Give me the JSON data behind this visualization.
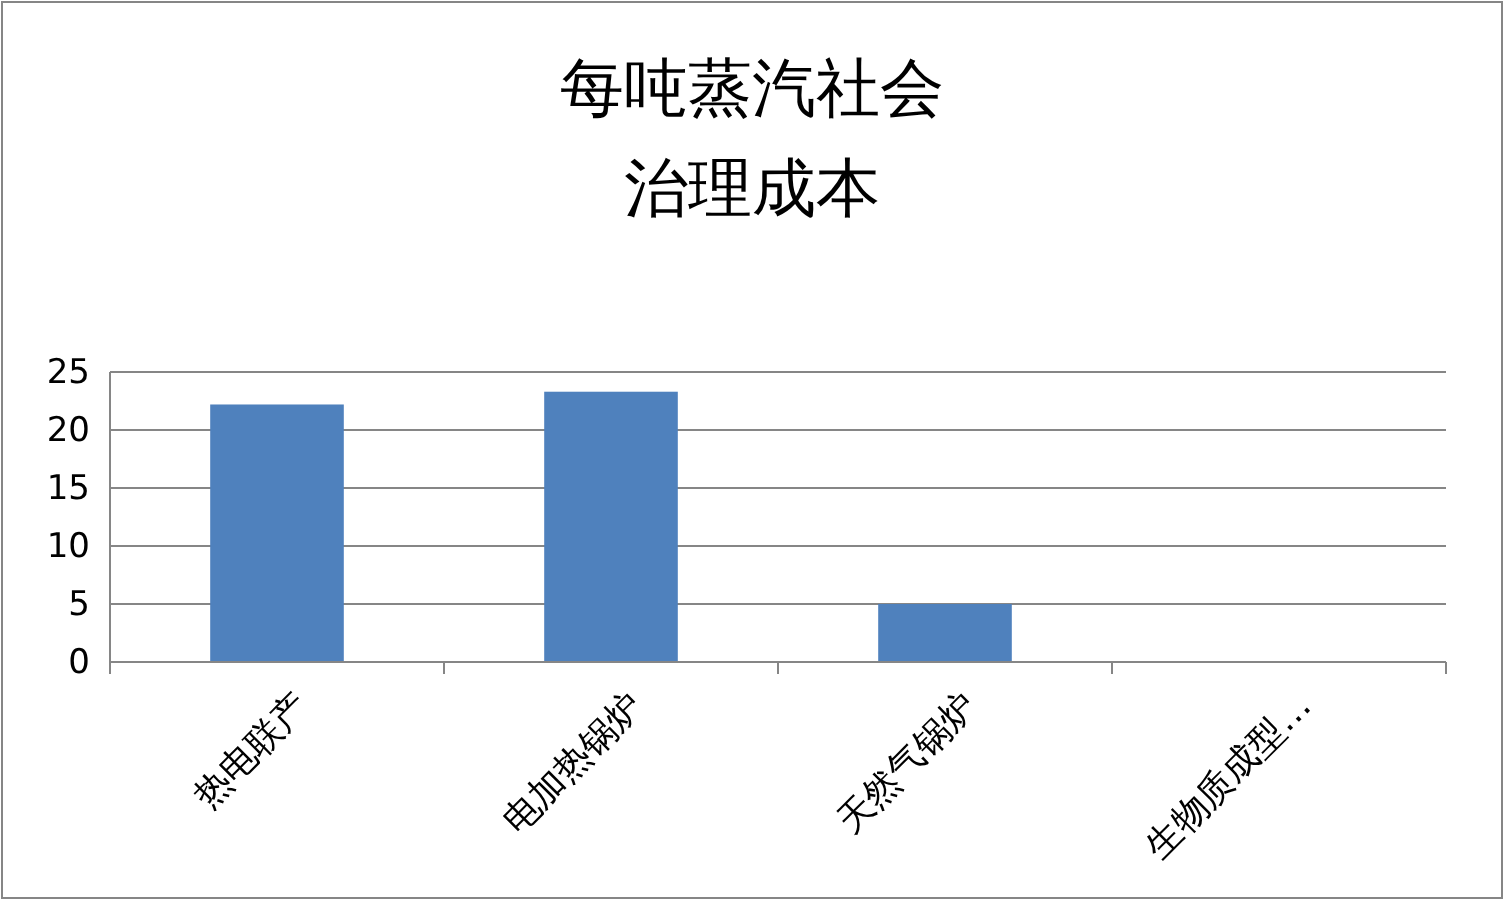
{
  "chart_data": {
    "type": "bar",
    "title": "每吨蒸汽社会治理成本",
    "categories": [
      "热电联产",
      "电加热锅炉",
      "天然气锅炉",
      "生物质成型…"
    ],
    "values": [
      22.2,
      23.3,
      5.0,
      0
    ],
    "color": "#4f81bd",
    "ylim": [
      0,
      25
    ],
    "yticks": [
      0,
      5,
      10,
      15,
      20,
      25
    ],
    "grid": "y"
  }
}
